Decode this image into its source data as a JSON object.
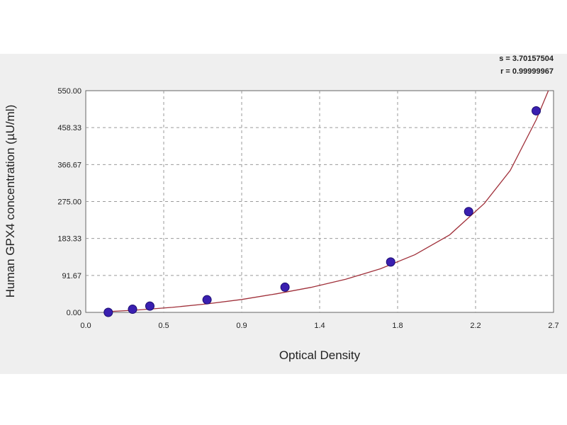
{
  "chart_data": {
    "type": "scatter",
    "title": "",
    "xlabel": "Optical Density",
    "ylabel": "Human GPX4 concentration (µU/ml)",
    "xlim": [
      0.0,
      2.7
    ],
    "ylim": [
      0.0,
      550.0
    ],
    "x_ticks": [
      "0.0",
      "0.5",
      "0.9",
      "1.4",
      "1.8",
      "2.2",
      "2.7"
    ],
    "x_tick_values": [
      0.0,
      0.45,
      0.9,
      1.35,
      1.8,
      2.25,
      2.7
    ],
    "y_ticks": [
      "0.00",
      "91.67",
      "183.33",
      "275.00",
      "366.67",
      "458.33",
      "550.00"
    ],
    "y_tick_values": [
      0.0,
      91.67,
      183.33,
      275.0,
      366.67,
      458.33,
      550.0
    ],
    "grid": true,
    "stats": [
      "s = 3.70157504",
      "r = 0.99999967"
    ],
    "colors": {
      "points": "#3a1fb0",
      "curve": "#a0303a",
      "panel": "#efefef",
      "plot": "#ffffff",
      "grid": "#9a9a9a"
    },
    "series": [
      {
        "points": [
          {
            "x": 0.13,
            "y": 0.0
          },
          {
            "x": 0.27,
            "y": 7.8
          },
          {
            "x": 0.37,
            "y": 15.6
          },
          {
            "x": 0.7,
            "y": 31.3
          },
          {
            "x": 1.15,
            "y": 62.5
          },
          {
            "x": 1.76,
            "y": 125.0
          },
          {
            "x": 2.21,
            "y": 250.0
          },
          {
            "x": 2.6,
            "y": 500.0
          }
        ],
        "fit_curve": [
          [
            0.13,
            2.0
          ],
          [
            0.3,
            6.0
          ],
          [
            0.5,
            12.5
          ],
          [
            0.7,
            21.0
          ],
          [
            0.9,
            32.0
          ],
          [
            1.1,
            46.0
          ],
          [
            1.3,
            62.0
          ],
          [
            1.5,
            82.0
          ],
          [
            1.7,
            108.0
          ],
          [
            1.9,
            143.0
          ],
          [
            2.1,
            192.0
          ],
          [
            2.3,
            270.0
          ],
          [
            2.45,
            352.0
          ],
          [
            2.6,
            478.0
          ],
          [
            2.67,
            550.0
          ]
        ]
      }
    ]
  }
}
